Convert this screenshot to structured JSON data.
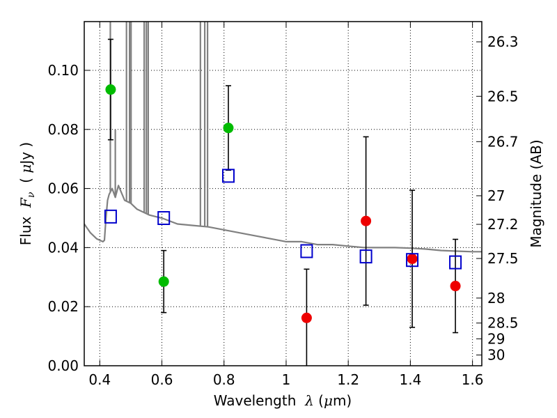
{
  "chart_data": {
    "type": "scatter",
    "title": "",
    "xlabel": {
      "prefix": "Wavelength  ",
      "symbol": "λ",
      "open": " (",
      "unit_symbol": "μ",
      "unit": "m)"
    },
    "ylabel": {
      "prefix": "Flux  ",
      "symbol": "F",
      "subscript": "ν",
      "open": "  ( ",
      "unit_symbol": "μ",
      "unit": "Jy )"
    },
    "y2label": "Magnitude (AB)",
    "xlim": [
      0.35,
      1.63
    ],
    "ylim": [
      0.0,
      0.1165
    ],
    "grid": true,
    "grid_style": "dotted",
    "x_ticks": [
      {
        "value": 0.4,
        "label": "0.4"
      },
      {
        "value": 0.6,
        "label": "0.6"
      },
      {
        "value": 0.8,
        "label": "0.8"
      },
      {
        "value": 1.0,
        "label": "1"
      },
      {
        "value": 1.2,
        "label": "1.2"
      },
      {
        "value": 1.4,
        "label": "1.4"
      },
      {
        "value": 1.6,
        "label": "1.6"
      }
    ],
    "y_ticks": [
      {
        "value": 0.0,
        "label": "0.00"
      },
      {
        "value": 0.02,
        "label": "0.02"
      },
      {
        "value": 0.04,
        "label": "0.04"
      },
      {
        "value": 0.06,
        "label": "0.06"
      },
      {
        "value": 0.08,
        "label": "0.08"
      },
      {
        "value": 0.1,
        "label": "0.10"
      }
    ],
    "y2_ticks": [
      {
        "mag": 26.3,
        "label": "26.3"
      },
      {
        "mag": 26.5,
        "label": "26.5"
      },
      {
        "mag": 26.7,
        "label": "26.7"
      },
      {
        "mag": 27.0,
        "label": "27"
      },
      {
        "mag": 27.2,
        "label": "27.2"
      },
      {
        "mag": 27.5,
        "label": "27.5"
      },
      {
        "mag": 28.0,
        "label": "28"
      },
      {
        "mag": 28.5,
        "label": "28.5"
      },
      {
        "mag": 29.0,
        "label": "29"
      },
      {
        "mag": 30.0,
        "label": "30"
      }
    ],
    "series": [
      {
        "kind": "model-spectrum",
        "color": "#808080",
        "x": [
          0.35,
          0.37,
          0.39,
          0.41,
          0.415,
          0.42,
          0.425,
          0.43,
          0.44,
          0.45,
          0.46,
          0.48,
          0.5,
          0.52,
          0.54,
          0.56,
          0.58,
          0.6,
          0.65,
          0.7,
          0.75,
          0.8,
          0.85,
          0.9,
          0.95,
          1.0,
          1.05,
          1.1,
          1.15,
          1.2,
          1.25,
          1.3,
          1.35,
          1.4,
          1.45,
          1.5,
          1.55,
          1.6,
          1.63
        ],
        "y": [
          0.048,
          0.045,
          0.043,
          0.042,
          0.0425,
          0.05,
          0.056,
          0.058,
          0.06,
          0.057,
          0.061,
          0.056,
          0.055,
          0.053,
          0.052,
          0.051,
          0.0505,
          0.05,
          0.048,
          0.0475,
          0.047,
          0.046,
          0.045,
          0.044,
          0.043,
          0.042,
          0.042,
          0.041,
          0.041,
          0.0405,
          0.04,
          0.04,
          0.04,
          0.0398,
          0.0395,
          0.039,
          0.0388,
          0.0386,
          0.0386
        ],
        "emission_lines": [
          {
            "x": 0.434,
            "peak": 0.2
          },
          {
            "x": 0.45,
            "peak": 0.08
          },
          {
            "x": 0.486,
            "peak": 0.2
          },
          {
            "x": 0.4959,
            "peak": 0.2
          },
          {
            "x": 0.5007,
            "peak": 0.2
          },
          {
            "x": 0.543,
            "peak": 0.2
          },
          {
            "x": 0.55,
            "peak": 0.2
          },
          {
            "x": 0.556,
            "peak": 0.2
          },
          {
            "x": 0.724,
            "peak": 0.2
          },
          {
            "x": 0.738,
            "peak": 0.2
          },
          {
            "x": 0.747,
            "peak": 0.2
          }
        ]
      },
      {
        "kind": "observed",
        "color": "#00bb00",
        "marker": "circle",
        "points": [
          {
            "x": 0.435,
            "y": 0.0935,
            "err": 0.017
          },
          {
            "x": 0.606,
            "y": 0.0285,
            "err": 0.0105
          },
          {
            "x": 0.814,
            "y": 0.0805,
            "err": 0.0143
          }
        ]
      },
      {
        "kind": "observed",
        "color": "#ee0000",
        "marker": "circle",
        "points": [
          {
            "x": 1.066,
            "y": 0.0162,
            "err": 0.0165
          },
          {
            "x": 1.257,
            "y": 0.049,
            "err": 0.0285
          },
          {
            "x": 1.406,
            "y": 0.0362,
            "err": 0.0232
          },
          {
            "x": 1.545,
            "y": 0.027,
            "err": 0.0158
          }
        ]
      },
      {
        "kind": "model-photometry",
        "color": "#0000cc",
        "marker": "square-open",
        "points": [
          {
            "x": 0.435,
            "y": 0.0505
          },
          {
            "x": 0.606,
            "y": 0.05
          },
          {
            "x": 0.814,
            "y": 0.0643
          },
          {
            "x": 1.066,
            "y": 0.0388
          },
          {
            "x": 1.257,
            "y": 0.037
          },
          {
            "x": 1.406,
            "y": 0.0358
          },
          {
            "x": 1.545,
            "y": 0.035
          }
        ]
      }
    ]
  }
}
